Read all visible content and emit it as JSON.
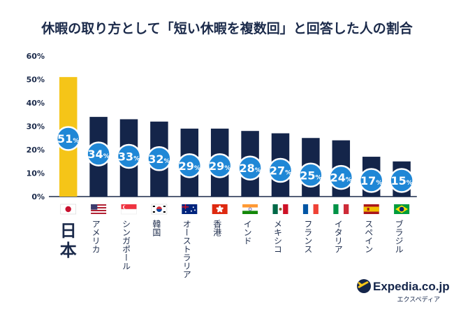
{
  "chart_data": {
    "type": "bar",
    "title": "休暇の取り方として「短い休暇を複数回」と回答した人の割合",
    "categories": [
      "日本",
      "アメリカ",
      "シンガポール",
      "韓国",
      "オーストラリア",
      "香港",
      "インド",
      "メキシコ",
      "フランス",
      "イタリア",
      "スペイン",
      "ブラジル"
    ],
    "values": [
      51,
      34,
      33,
      32,
      29,
      29,
      28,
      27,
      25,
      24,
      17,
      15
    ],
    "value_labels": [
      "51",
      "34",
      "33",
      "32",
      "29",
      "29",
      "28",
      "27",
      "25",
      "24",
      "17",
      "15"
    ],
    "value_unit": "%",
    "y_tick_labels": [
      "0%",
      "10%",
      "20%",
      "30%",
      "40%",
      "50%",
      "60%"
    ],
    "y_ticks": [
      0,
      10,
      20,
      30,
      40,
      50,
      60
    ],
    "ylim": [
      0,
      60
    ],
    "xlabel": "",
    "ylabel": "",
    "grid": false,
    "highlight_index": 0,
    "flags": [
      "japan-flag",
      "usa-flag",
      "singapore-flag",
      "korea-flag",
      "australia-flag",
      "hongkong-flag",
      "india-flag",
      "mexico-flag",
      "france-flag",
      "italy-flag",
      "spain-flag",
      "brazil-flag"
    ],
    "colors": {
      "highlight_bar": "#f5c518",
      "bar": "#14254a",
      "bubble": "#1f87d6",
      "bubble_border": "#ffffff",
      "text": "#1b2a4a",
      "axis": "#1b2a4a"
    }
  },
  "branding": {
    "logo_text": "Expedia.co.jp",
    "logo_subtext": "エクスペディア",
    "logo_icon": "airplane-globe-icon"
  }
}
